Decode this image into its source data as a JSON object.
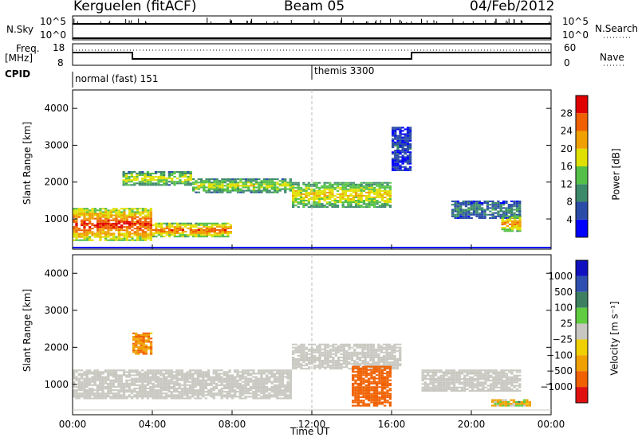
{
  "header": {
    "radar": "Kerguelen (fitACF)",
    "beam": "Beam 05",
    "date": "04/Feb/2012"
  },
  "top_panels": {
    "nsky": {
      "label": "N.Sky",
      "ticks": [
        "10^5",
        "10^0"
      ],
      "right_label": "N.Search",
      "right_ticks": [
        "10^5",
        "10^0"
      ]
    },
    "freq": {
      "label_line1": "Freq.",
      "label_line2": "[MHz]",
      "ticks": [
        "18",
        "8"
      ],
      "right_label": "Nave",
      "right_ticks": [
        "60",
        "0"
      ]
    },
    "cpid": {
      "label": "CPID",
      "mode1": "normal (fast) 151",
      "mode2": "themis 3300"
    }
  },
  "colors": {
    "power_scale": [
      "#0000ff",
      "#2a4ba8",
      "#3d8a6a",
      "#55c048",
      "#e0e000",
      "#f0a000",
      "#f06000",
      "#e00000"
    ],
    "velocity_scale": [
      "#1010c0",
      "#2f4fb0",
      "#3c8060",
      "#60cc40",
      "#c8c8c0",
      "#f0d000",
      "#f0a000",
      "#f06000",
      "#e01010"
    ],
    "gray": "#c8c8c0"
  },
  "chart_data": [
    {
      "type": "heatmap",
      "title": "Power",
      "ylabel": "Slant Range [km]",
      "x_ticks": [
        "00:00",
        "04:00",
        "08:00",
        "12:00",
        "16:00",
        "20:00",
        "00:00"
      ],
      "y_ticks": [
        1000,
        2000,
        3000,
        4000
      ],
      "ylim": [
        180,
        4500
      ],
      "colorbar": {
        "label": "Power [dB]",
        "ticks": [
          4,
          8,
          12,
          16,
          20,
          24,
          28
        ],
        "range": [
          0,
          32
        ]
      },
      "bands": [
        {
          "t0": 0.0,
          "t1": 4.0,
          "r0": 400,
          "r1": 1300,
          "power": 28
        },
        {
          "t0": 4.0,
          "t1": 8.0,
          "r0": 500,
          "r1": 900,
          "power": 26
        },
        {
          "t0": 2.5,
          "t1": 6.0,
          "r0": 1900,
          "r1": 2300,
          "power": 18
        },
        {
          "t0": 6.0,
          "t1": 11.0,
          "r0": 1700,
          "r1": 2100,
          "power": 18
        },
        {
          "t0": 11.0,
          "t1": 16.0,
          "r0": 1300,
          "r1": 2000,
          "power": 20
        },
        {
          "t0": 16.0,
          "t1": 17.0,
          "r0": 2300,
          "r1": 3500,
          "power": 6
        },
        {
          "t0": 19.0,
          "t1": 22.5,
          "r0": 1000,
          "r1": 1500,
          "power": 10
        },
        {
          "t0": 21.5,
          "t1": 22.5,
          "r0": 650,
          "r1": 1100,
          "power": 24
        }
      ]
    },
    {
      "type": "heatmap",
      "title": "Velocity",
      "ylabel": "Slant Range [km]",
      "xlabel": "Time UT",
      "x_ticks": [
        "00:00",
        "04:00",
        "08:00",
        "12:00",
        "16:00",
        "20:00",
        "00:00"
      ],
      "y_ticks": [
        1000,
        2000,
        3000,
        4000
      ],
      "ylim": [
        180,
        4500
      ],
      "colorbar": {
        "label": "Velocity [m s⁻¹]",
        "ticks": [
          1000,
          500,
          100,
          25,
          -25,
          -100,
          -500,
          -1000
        ]
      },
      "bands": [
        {
          "t0": 0.0,
          "t1": 11.0,
          "r0": 600,
          "r1": 1400,
          "velocity": 0
        },
        {
          "t0": 11.0,
          "t1": 16.5,
          "r0": 1400,
          "r1": 2100,
          "velocity": 0
        },
        {
          "t0": 14.0,
          "t1": 16.0,
          "r0": 400,
          "r1": 1500,
          "velocity": -400
        },
        {
          "t0": 17.5,
          "t1": 22.5,
          "r0": 800,
          "r1": 1400,
          "velocity": 0
        },
        {
          "t0": 3.0,
          "t1": 4.0,
          "r0": 1800,
          "r1": 2400,
          "velocity": -200
        },
        {
          "t0": 21.0,
          "t1": 23.0,
          "r0": 400,
          "r1": 600,
          "velocity": -80
        }
      ]
    }
  ]
}
